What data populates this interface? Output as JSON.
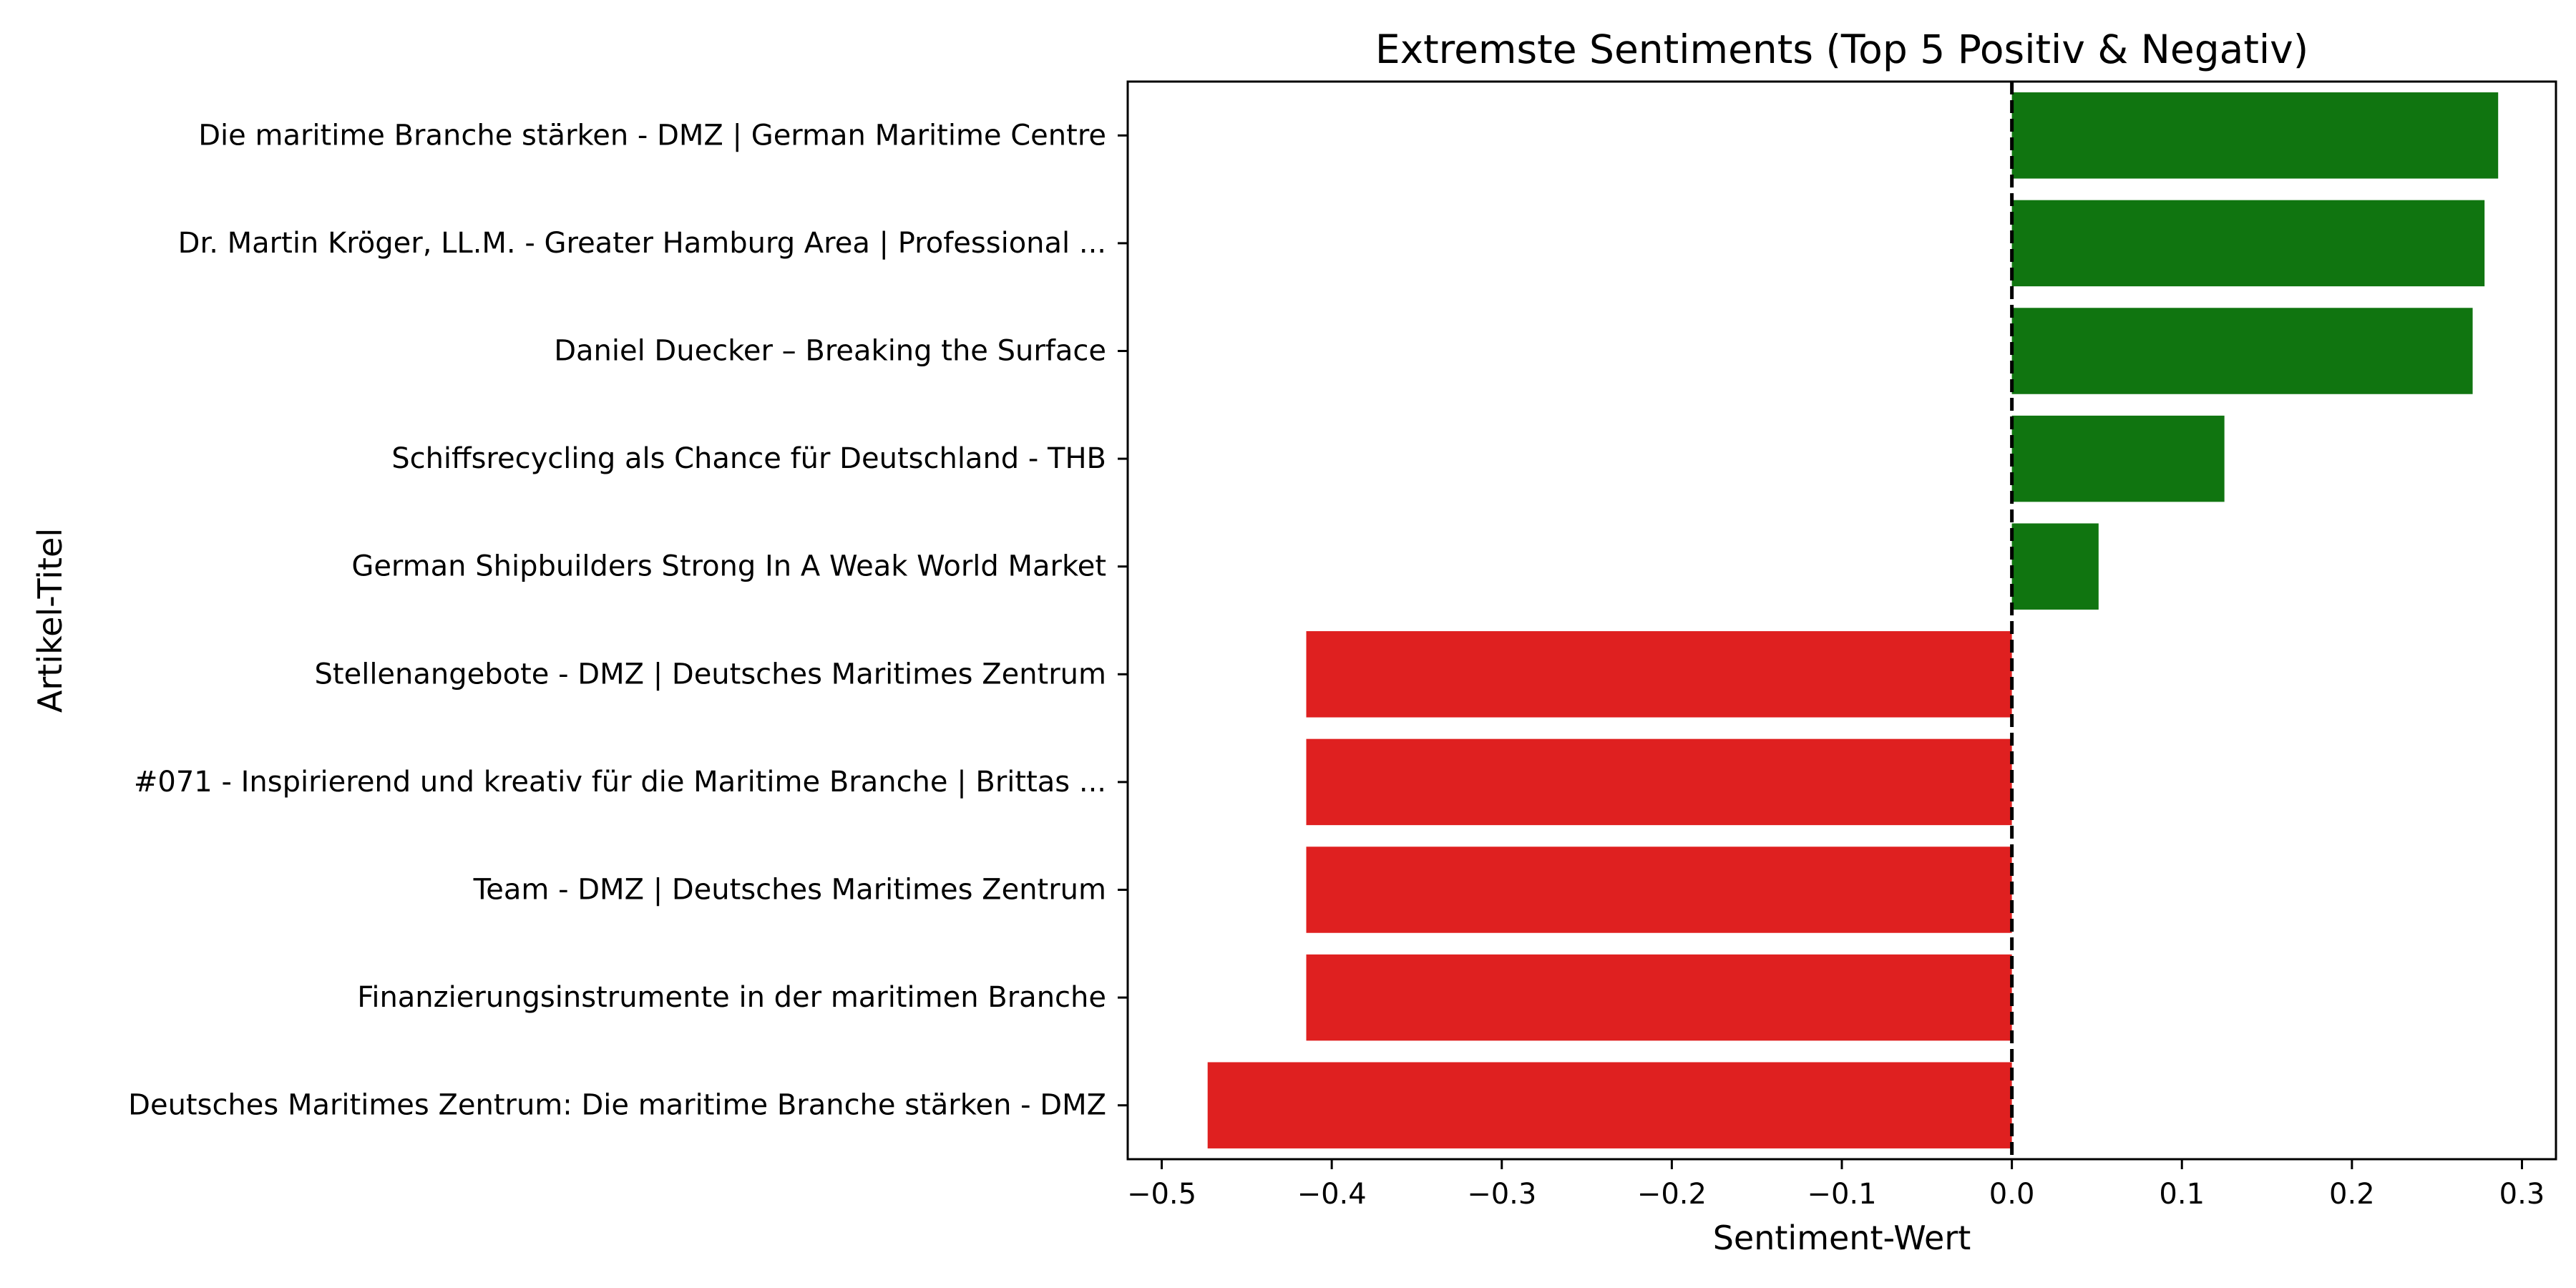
{
  "chart_data": {
    "type": "bar",
    "orientation": "horizontal",
    "title": "Extremste Sentiments (Top 5 Positiv & Negativ)",
    "xlabel": "Sentiment-Wert",
    "ylabel": "Artikel-Titel",
    "xlim": [
      -0.52,
      0.32
    ],
    "xticks": [
      -0.5,
      -0.4,
      -0.3,
      -0.2,
      -0.1,
      0.0,
      0.1,
      0.2,
      0.3
    ],
    "xtick_labels": [
      "−0.5",
      "−0.4",
      "−0.3",
      "−0.2",
      "−0.1",
      "0.0",
      "0.1",
      "0.2",
      "0.3"
    ],
    "grid": false,
    "reference_line": {
      "x": 0.0,
      "style": "dashed",
      "color": "#000000"
    },
    "colors": {
      "positive": "#107510",
      "negative": "#df2020"
    },
    "categories": [
      "Die maritime Branche stärken - DMZ | German Maritime Centre",
      "Dr. Martin Kröger, LL.M. - Greater Hamburg Area | Professional ...",
      "Daniel Duecker – Breaking the Surface",
      "Schiffsrecycling als Chance für Deutschland - THB",
      "German Shipbuilders Strong In A Weak World Market",
      "Stellenangebote - DMZ | Deutsches Maritimes Zentrum",
      "#071 - Inspirierend und kreativ für die Maritime Branche | Brittas ...",
      "Team - DMZ | Deutsches Maritimes Zentrum",
      "Finanzierungsinstrumente in der maritimen Branche",
      "Deutsches Maritimes Zentrum: Die maritime Branche stärken - DMZ"
    ],
    "values": [
      0.286,
      0.278,
      0.271,
      0.125,
      0.051,
      -0.415,
      -0.415,
      -0.415,
      -0.415,
      -0.473
    ]
  }
}
